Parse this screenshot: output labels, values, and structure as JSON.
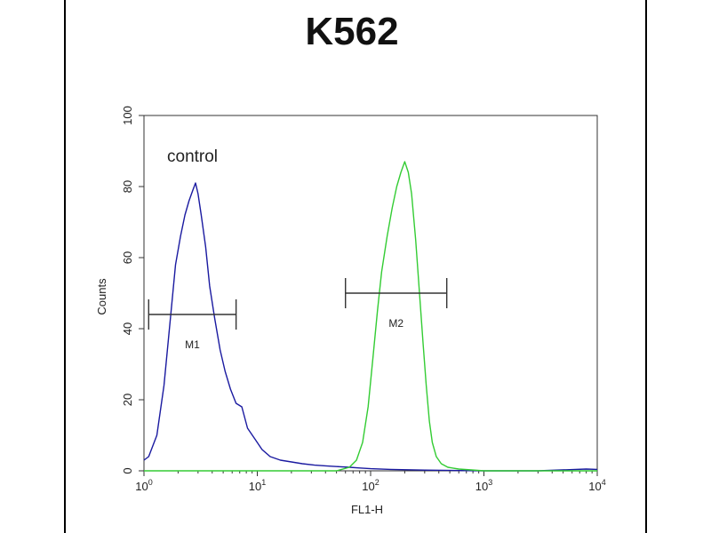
{
  "chart_data": {
    "type": "line",
    "title": "K562",
    "xlabel": "FL1-H",
    "ylabel": "Counts",
    "xscale": "log",
    "xlim": [
      1,
      10000
    ],
    "ylim": [
      0,
      100
    ],
    "x_tick_labels": [
      {
        "base": "10",
        "exp": "0"
      },
      {
        "base": "10",
        "exp": "1"
      },
      {
        "base": "10",
        "exp": "2"
      },
      {
        "base": "10",
        "exp": "3"
      },
      {
        "base": "10",
        "exp": "4"
      }
    ],
    "y_ticks": [
      0,
      20,
      40,
      60,
      80,
      100
    ],
    "annotation": "control",
    "series": [
      {
        "color": "#1a1aa0",
        "x": [
          1,
          1.1,
          1.3,
          1.5,
          1.7,
          1.9,
          2.1,
          2.3,
          2.5,
          2.7,
          2.85,
          3.0,
          3.2,
          3.5,
          3.8,
          4.2,
          4.7,
          5.2,
          5.8,
          6.5,
          7.3,
          8.2,
          9.5,
          11,
          13,
          16,
          20,
          25,
          32,
          40,
          50,
          65,
          80,
          100,
          150,
          300,
          1000,
          3000,
          8000,
          10000
        ],
        "y": [
          3,
          4,
          10,
          24,
          42,
          58,
          66,
          72,
          76,
          79,
          81,
          78,
          72,
          63,
          52,
          43,
          34,
          28,
          23,
          19,
          18,
          12,
          9,
          6,
          4,
          3,
          2.5,
          2,
          1.6,
          1.4,
          1.2,
          1,
          0.8,
          0.6,
          0.4,
          0.2,
          0,
          0,
          0.5,
          0.4
        ]
      },
      {
        "color": "#33cc33",
        "x": [
          1,
          10,
          50,
          65,
          75,
          85,
          95,
          105,
          115,
          125,
          140,
          155,
          170,
          185,
          200,
          215,
          230,
          250,
          270,
          290,
          310,
          330,
          350,
          380,
          420,
          480,
          600,
          1000,
          10000
        ],
        "y": [
          0,
          0,
          0,
          1,
          3,
          8,
          18,
          32,
          45,
          56,
          66,
          74,
          80,
          84,
          87,
          84,
          78,
          65,
          50,
          36,
          24,
          14,
          8,
          4,
          2,
          1,
          0.5,
          0,
          0
        ]
      }
    ],
    "gates": [
      {
        "label": "M1",
        "x_start": 1.1,
        "x_end": 6.5,
        "y": 44
      },
      {
        "label": "M2",
        "x_start": 60,
        "x_end": 470,
        "y": 50
      }
    ]
  }
}
